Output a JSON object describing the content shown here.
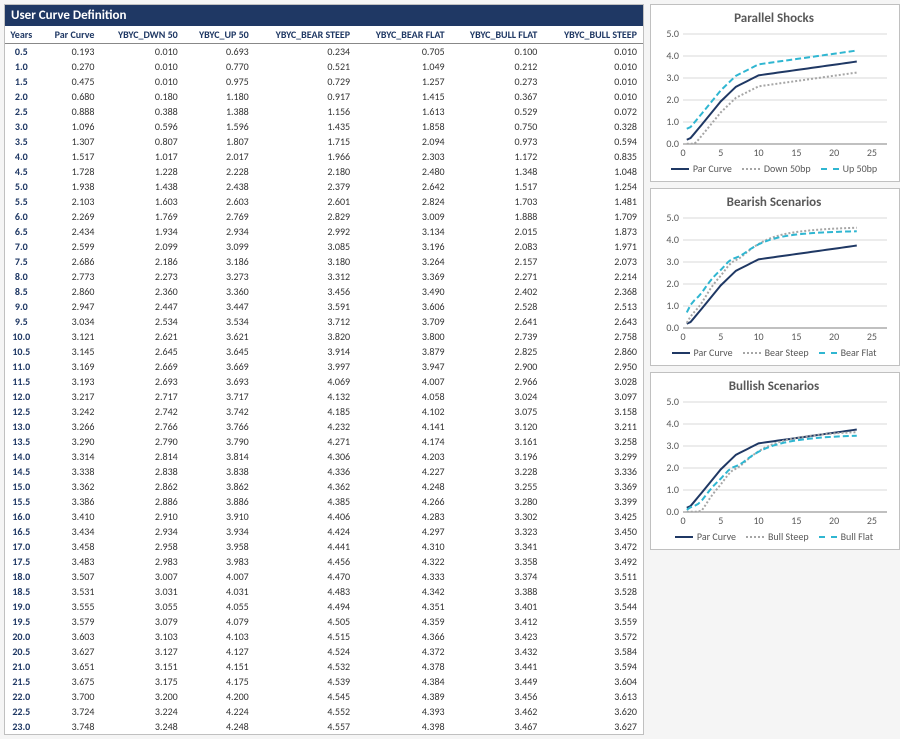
{
  "table": {
    "title": "User Curve Definition",
    "columns": [
      "Years",
      "Par Curve",
      "YBYC_DWN 50",
      "YBYC_UP 50",
      "YBYC_BEAR STEEP",
      "YBYC_BEAR FLAT",
      "YBYC_BULL FLAT",
      "YBYC_BULL STEEP"
    ],
    "rows": [
      [
        "0.5",
        "0.193",
        "0.010",
        "0.693",
        "0.234",
        "0.705",
        "0.100",
        "0.010"
      ],
      [
        "1.0",
        "0.270",
        "0.010",
        "0.770",
        "0.521",
        "1.049",
        "0.212",
        "0.010"
      ],
      [
        "1.5",
        "0.475",
        "0.010",
        "0.975",
        "0.729",
        "1.257",
        "0.273",
        "0.010"
      ],
      [
        "2.0",
        "0.680",
        "0.180",
        "1.180",
        "0.917",
        "1.415",
        "0.367",
        "0.010"
      ],
      [
        "2.5",
        "0.888",
        "0.388",
        "1.388",
        "1.156",
        "1.613",
        "0.529",
        "0.072"
      ],
      [
        "3.0",
        "1.096",
        "0.596",
        "1.596",
        "1.435",
        "1.858",
        "0.750",
        "0.328"
      ],
      [
        "3.5",
        "1.307",
        "0.807",
        "1.807",
        "1.715",
        "2.094",
        "0.973",
        "0.594"
      ],
      [
        "4.0",
        "1.517",
        "1.017",
        "2.017",
        "1.966",
        "2.303",
        "1.172",
        "0.835"
      ],
      [
        "4.5",
        "1.728",
        "1.228",
        "2.228",
        "2.180",
        "2.480",
        "1.348",
        "1.048"
      ],
      [
        "5.0",
        "1.938",
        "1.438",
        "2.438",
        "2.379",
        "2.642",
        "1.517",
        "1.254"
      ],
      [
        "5.5",
        "2.103",
        "1.603",
        "2.603",
        "2.601",
        "2.824",
        "1.703",
        "1.481"
      ],
      [
        "6.0",
        "2.269",
        "1.769",
        "2.769",
        "2.829",
        "3.009",
        "1.888",
        "1.709"
      ],
      [
        "6.5",
        "2.434",
        "1.934",
        "2.934",
        "2.992",
        "3.134",
        "2.015",
        "1.873"
      ],
      [
        "7.0",
        "2.599",
        "2.099",
        "3.099",
        "3.085",
        "3.196",
        "2.083",
        "1.971"
      ],
      [
        "7.5",
        "2.686",
        "2.186",
        "3.186",
        "3.180",
        "3.264",
        "2.157",
        "2.073"
      ],
      [
        "8.0",
        "2.773",
        "2.273",
        "3.273",
        "3.312",
        "3.369",
        "2.271",
        "2.214"
      ],
      [
        "8.5",
        "2.860",
        "2.360",
        "3.360",
        "3.456",
        "3.490",
        "2.402",
        "2.368"
      ],
      [
        "9.0",
        "2.947",
        "2.447",
        "3.447",
        "3.591",
        "3.606",
        "2.528",
        "2.513"
      ],
      [
        "9.5",
        "3.034",
        "2.534",
        "3.534",
        "3.712",
        "3.709",
        "2.641",
        "2.643"
      ],
      [
        "10.0",
        "3.121",
        "2.621",
        "3.621",
        "3.820",
        "3.800",
        "2.739",
        "2.758"
      ],
      [
        "10.5",
        "3.145",
        "2.645",
        "3.645",
        "3.914",
        "3.879",
        "2.825",
        "2.860"
      ],
      [
        "11.0",
        "3.169",
        "2.669",
        "3.669",
        "3.997",
        "3.947",
        "2.900",
        "2.950"
      ],
      [
        "11.5",
        "3.193",
        "2.693",
        "3.693",
        "4.069",
        "4.007",
        "2.966",
        "3.028"
      ],
      [
        "12.0",
        "3.217",
        "2.717",
        "3.717",
        "4.132",
        "4.058",
        "3.024",
        "3.097"
      ],
      [
        "12.5",
        "3.242",
        "2.742",
        "3.742",
        "4.185",
        "4.102",
        "3.075",
        "3.158"
      ],
      [
        "13.0",
        "3.266",
        "2.766",
        "3.766",
        "4.232",
        "4.141",
        "3.120",
        "3.211"
      ],
      [
        "13.5",
        "3.290",
        "2.790",
        "3.790",
        "4.271",
        "4.174",
        "3.161",
        "3.258"
      ],
      [
        "14.0",
        "3.314",
        "2.814",
        "3.814",
        "4.306",
        "4.203",
        "3.196",
        "3.299"
      ],
      [
        "14.5",
        "3.338",
        "2.838",
        "3.838",
        "4.336",
        "4.227",
        "3.228",
        "3.336"
      ],
      [
        "15.0",
        "3.362",
        "2.862",
        "3.862",
        "4.362",
        "4.248",
        "3.255",
        "3.369"
      ],
      [
        "15.5",
        "3.386",
        "2.886",
        "3.886",
        "4.385",
        "4.266",
        "3.280",
        "3.399"
      ],
      [
        "16.0",
        "3.410",
        "2.910",
        "3.910",
        "4.406",
        "4.283",
        "3.302",
        "3.425"
      ],
      [
        "16.5",
        "3.434",
        "2.934",
        "3.934",
        "4.424",
        "4.297",
        "3.323",
        "3.450"
      ],
      [
        "17.0",
        "3.458",
        "2.958",
        "3.958",
        "4.441",
        "4.310",
        "3.341",
        "3.472"
      ],
      [
        "17.5",
        "3.483",
        "2.983",
        "3.983",
        "4.456",
        "4.322",
        "3.358",
        "3.492"
      ],
      [
        "18.0",
        "3.507",
        "3.007",
        "4.007",
        "4.470",
        "4.333",
        "3.374",
        "3.511"
      ],
      [
        "18.5",
        "3.531",
        "3.031",
        "4.031",
        "4.483",
        "4.342",
        "3.388",
        "3.528"
      ],
      [
        "19.0",
        "3.555",
        "3.055",
        "4.055",
        "4.494",
        "4.351",
        "3.401",
        "3.544"
      ],
      [
        "19.5",
        "3.579",
        "3.079",
        "4.079",
        "4.505",
        "4.359",
        "3.412",
        "3.559"
      ],
      [
        "20.0",
        "3.603",
        "3.103",
        "4.103",
        "4.515",
        "4.366",
        "3.423",
        "3.572"
      ],
      [
        "20.5",
        "3.627",
        "3.127",
        "4.127",
        "4.524",
        "4.372",
        "3.432",
        "3.584"
      ],
      [
        "21.0",
        "3.651",
        "3.151",
        "4.151",
        "4.532",
        "4.378",
        "3.441",
        "3.594"
      ],
      [
        "21.5",
        "3.675",
        "3.175",
        "4.175",
        "4.539",
        "4.384",
        "3.449",
        "3.604"
      ],
      [
        "22.0",
        "3.700",
        "3.200",
        "4.200",
        "4.545",
        "4.389",
        "3.456",
        "3.613"
      ],
      [
        "22.5",
        "3.724",
        "3.224",
        "4.224",
        "4.552",
        "4.393",
        "3.462",
        "3.620"
      ],
      [
        "23.0",
        "3.748",
        "3.248",
        "4.248",
        "4.557",
        "4.398",
        "3.467",
        "3.627"
      ]
    ],
    "header_color": "#1f3864",
    "header_bg": "#1f3864",
    "grid_color": "#e0e0e0"
  },
  "charts": {
    "common": {
      "xlim": [
        0,
        27
      ],
      "ylim": [
        0,
        5
      ],
      "xticks": [
        0,
        5,
        10,
        15,
        20,
        25
      ],
      "yticks": [
        0,
        1,
        2,
        3,
        4,
        5
      ],
      "ytick_labels": [
        "0.0",
        "1.0",
        "2.0",
        "3.0",
        "4.0",
        "5.0"
      ],
      "grid_color": "#d9d9d9",
      "axis_color": "#808080",
      "tick_font_size": 10
    },
    "panels": [
      {
        "title": "Parallel Shocks",
        "series": [
          {
            "name": "Par Curve",
            "key": "Par Curve",
            "col": 1,
            "color": "#1f3864",
            "dash": "",
            "width": 2
          },
          {
            "name": "Down 50bp",
            "key": "Down 50bp",
            "col": 2,
            "color": "#a6a6a6",
            "dash": "2,2",
            "width": 2
          },
          {
            "name": "Up 50bp",
            "key": "Up 50bp",
            "col": 3,
            "color": "#2fb6d1",
            "dash": "6,3",
            "width": 2
          }
        ]
      },
      {
        "title": "Bearish Scenarios",
        "series": [
          {
            "name": "Par Curve",
            "key": "Par Curve",
            "col": 1,
            "color": "#1f3864",
            "dash": "",
            "width": 2
          },
          {
            "name": "Bear Steep",
            "key": "Bear Steep",
            "col": 4,
            "color": "#a6a6a6",
            "dash": "2,2",
            "width": 2
          },
          {
            "name": "Bear Flat",
            "key": "Bear Flat",
            "col": 5,
            "color": "#2fb6d1",
            "dash": "6,3",
            "width": 2
          }
        ]
      },
      {
        "title": "Bullish Scenarios",
        "series": [
          {
            "name": "Par Curve",
            "key": "Par Curve",
            "col": 1,
            "color": "#1f3864",
            "dash": "",
            "width": 2
          },
          {
            "name": "Bull Steep",
            "key": "Bull Steep",
            "col": 7,
            "color": "#a6a6a6",
            "dash": "2,2",
            "width": 2
          },
          {
            "name": "Bull Flat",
            "key": "Bull Flat",
            "col": 6,
            "color": "#2fb6d1",
            "dash": "6,3",
            "width": 2
          }
        ]
      }
    ]
  }
}
